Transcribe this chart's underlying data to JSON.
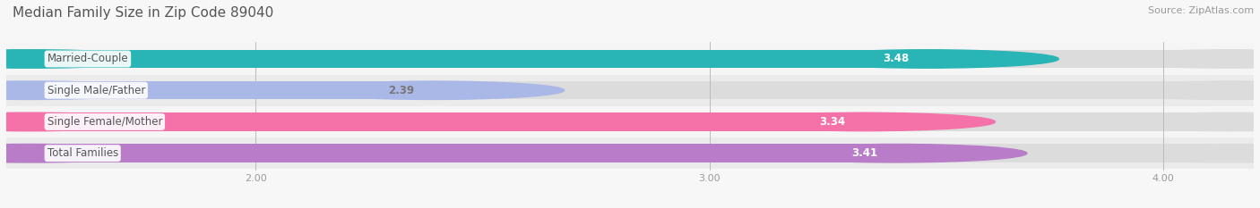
{
  "title": "Median Family Size in Zip Code 89040",
  "source": "Source: ZipAtlas.com",
  "categories": [
    "Married-Couple",
    "Single Male/Father",
    "Single Female/Mother",
    "Total Families"
  ],
  "values": [
    3.48,
    2.39,
    3.34,
    3.41
  ],
  "bar_colors": [
    "#29b5b5",
    "#aab8e8",
    "#f472a8",
    "#b87cc8"
  ],
  "value_text_colors": [
    "white",
    "#777777",
    "white",
    "white"
  ],
  "xlim_left": 1.5,
  "xlim_right": 4.15,
  "xticks": [
    2.0,
    3.0,
    4.0
  ],
  "xtick_labels": [
    "2.00",
    "3.00",
    "4.00"
  ],
  "bar_height": 0.58,
  "figsize": [
    14.06,
    2.33
  ],
  "dpi": 100,
  "row_colors": [
    "#ebebeb",
    "#f5f5f5",
    "#ebebeb",
    "#f5f5f5"
  ],
  "title_fontsize": 11,
  "source_fontsize": 8,
  "label_fontsize": 8.5,
  "value_fontsize": 8.5,
  "tick_fontsize": 8
}
